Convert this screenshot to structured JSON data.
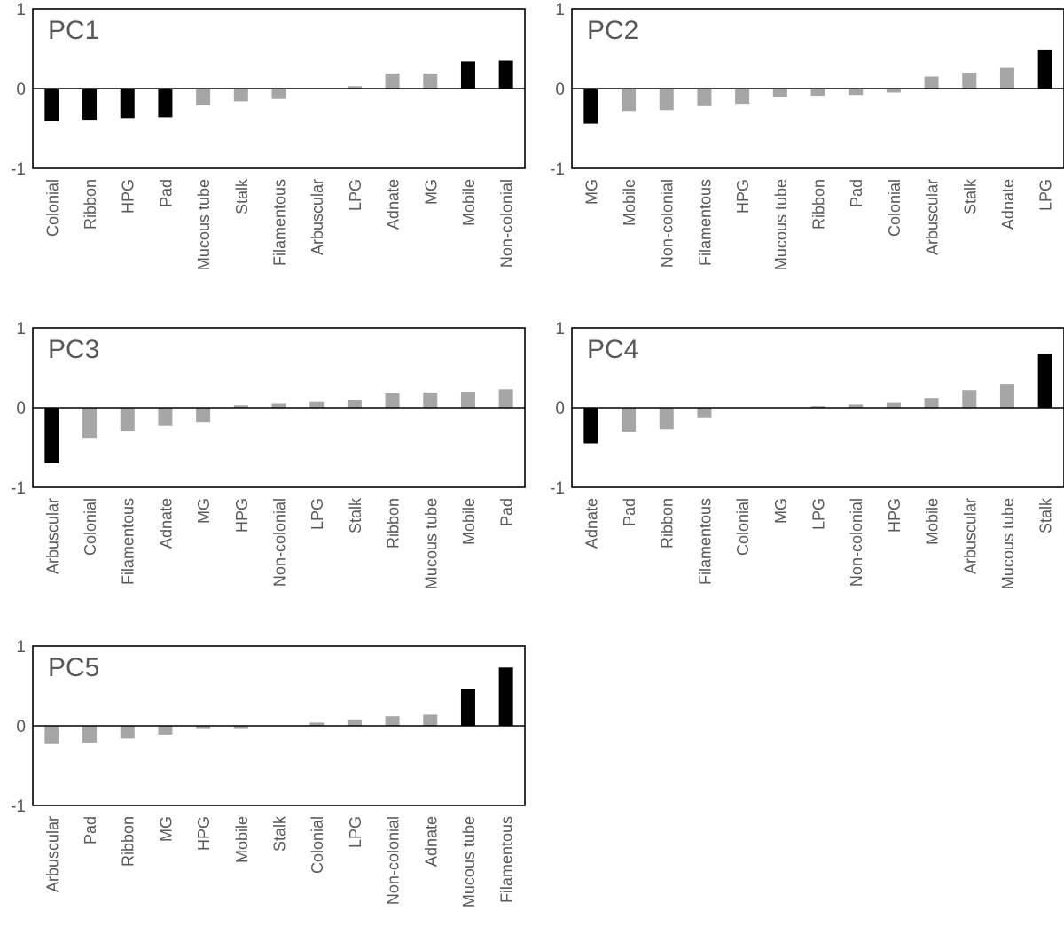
{
  "colors": {
    "highlight_bar": "#000000",
    "regular_bar": "#a6a6a6",
    "frame": "#000000",
    "text": "#595959"
  },
  "chart_data": [
    {
      "type": "bar",
      "title": "PC1",
      "ylim": [
        -1,
        1
      ],
      "yticks": [
        "1",
        "0",
        "-1"
      ],
      "categories": [
        "Colonial",
        "Ribbon",
        "HPG",
        "Pad",
        "Mucous tube",
        "Stalk",
        "Filamentous",
        "Arbuscular",
        "LPG",
        "Adnate",
        "MG",
        "Mobile",
        "Non-colonial"
      ],
      "values": [
        -0.41,
        -0.39,
        -0.37,
        -0.36,
        -0.21,
        -0.16,
        -0.13,
        0.0,
        0.03,
        0.19,
        0.19,
        0.34,
        0.35
      ],
      "highlighted": [
        true,
        true,
        true,
        true,
        false,
        false,
        false,
        false,
        false,
        false,
        false,
        true,
        true
      ]
    },
    {
      "type": "bar",
      "title": "PC2",
      "ylim": [
        -1,
        1
      ],
      "yticks": [
        "1",
        "0",
        "-1"
      ],
      "categories": [
        "MG",
        "Mobile",
        "Non-colonial",
        "Filamentous",
        "HPG",
        "Mucous tube",
        "Ribbon",
        "Pad",
        "Colonial",
        "Arbuscular",
        "Stalk",
        "Adnate",
        "LPG"
      ],
      "values": [
        -0.44,
        -0.28,
        -0.27,
        -0.22,
        -0.19,
        -0.11,
        -0.09,
        -0.08,
        -0.05,
        0.15,
        0.2,
        0.26,
        0.49
      ],
      "highlighted": [
        true,
        false,
        false,
        false,
        false,
        false,
        false,
        false,
        false,
        false,
        false,
        false,
        true
      ]
    },
    {
      "type": "bar",
      "title": "PC3",
      "ylim": [
        -1,
        1
      ],
      "yticks": [
        "1",
        "0",
        "-1"
      ],
      "categories": [
        "Arbuscular",
        "Colonial",
        "Filamentous",
        "Adnate",
        "MG",
        "HPG",
        "Non-colonial",
        "LPG",
        "Stalk",
        "Ribbon",
        "Mucous tube",
        "Mobile",
        "Pad"
      ],
      "values": [
        -0.7,
        -0.38,
        -0.29,
        -0.23,
        -0.18,
        0.03,
        0.05,
        0.07,
        0.1,
        0.18,
        0.19,
        0.2,
        0.23
      ],
      "highlighted": [
        true,
        false,
        false,
        false,
        false,
        false,
        false,
        false,
        false,
        false,
        false,
        false,
        false
      ]
    },
    {
      "type": "bar",
      "title": "PC4",
      "ylim": [
        -1,
        1
      ],
      "yticks": [
        "1",
        "0",
        "-1"
      ],
      "categories": [
        "Adnate",
        "Pad",
        "Ribbon",
        "Filamentous",
        "Colonial",
        "MG",
        "LPG",
        "Non-colonial",
        "HPG",
        "Mobile",
        "Arbuscular",
        "Mucous tube",
        "Stalk"
      ],
      "values": [
        -0.45,
        -0.3,
        -0.27,
        -0.13,
        0.0,
        0.0,
        0.02,
        0.04,
        0.06,
        0.12,
        0.22,
        0.3,
        0.67
      ],
      "highlighted": [
        true,
        false,
        false,
        false,
        false,
        false,
        false,
        false,
        false,
        false,
        false,
        false,
        true
      ]
    },
    {
      "type": "bar",
      "title": "PC5",
      "ylim": [
        -1,
        1
      ],
      "yticks": [
        "1",
        "0",
        "-1"
      ],
      "categories": [
        "Arbuscular",
        "Pad",
        "Ribbon",
        "MG",
        "HPG",
        "Mobile",
        "Stalk",
        "Colonial",
        "LPG",
        "Non-colonial",
        "Adnate",
        "Mucous tube",
        "Filamentous"
      ],
      "values": [
        -0.23,
        -0.21,
        -0.16,
        -0.11,
        -0.04,
        -0.04,
        0.0,
        0.04,
        0.08,
        0.12,
        0.14,
        0.46,
        0.73
      ],
      "highlighted": [
        false,
        false,
        false,
        false,
        false,
        false,
        false,
        false,
        false,
        false,
        false,
        true,
        true
      ]
    }
  ]
}
